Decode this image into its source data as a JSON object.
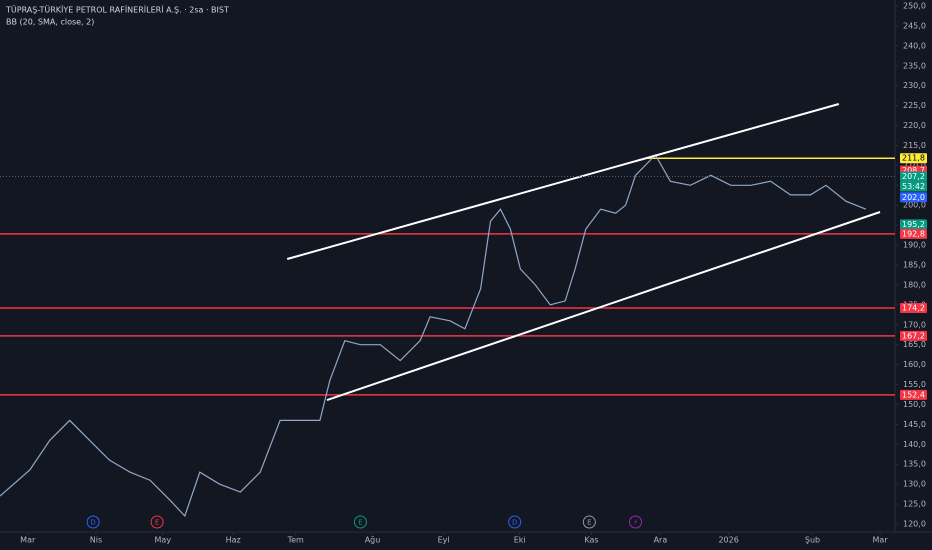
{
  "chart_data": {
    "type": "line",
    "title": "TÜPRAŞ-TÜRKİYE PETROL RAFİNERİLERİ A.Ş. · 2sa · BIST",
    "subtitle": "BB (20, SMA, close, 2)",
    "series": [
      {
        "name": "Close",
        "color": "#8fa8c8",
        "x": [
          -0.39,
          0.03,
          0.31,
          0.59,
          0.87,
          1.15,
          1.44,
          1.72,
          2.0,
          2.21,
          2.42,
          2.7,
          2.99,
          3.27,
          3.55,
          3.83,
          4.11,
          4.25,
          4.46,
          4.68,
          4.96,
          5.24,
          5.52,
          5.66,
          5.94,
          6.15,
          6.37,
          6.51,
          6.65,
          6.79,
          6.93,
          7.14,
          7.35,
          7.56,
          7.7,
          7.85,
          8.06,
          8.27,
          8.41,
          8.55,
          8.83,
          9.04,
          9.32,
          9.61,
          9.89,
          10.17,
          10.45,
          10.73,
          11.01,
          11.23,
          11.51,
          11.79
        ],
        "values": [
          127,
          133.6,
          141,
          146,
          141,
          136,
          133,
          131,
          126,
          122,
          133,
          130,
          128,
          133,
          146,
          146,
          146,
          156,
          166,
          165,
          165,
          161,
          166,
          172,
          171,
          169,
          179,
          196,
          199,
          194,
          184,
          180,
          175,
          176,
          184,
          194,
          199,
          198,
          200,
          207.5,
          212.6,
          206,
          205,
          207.5,
          205,
          205,
          206,
          202.6,
          202.6,
          205,
          201,
          199
        ]
      }
    ],
    "trend_lines": [
      {
        "x": [
          3.65,
          11.41
        ],
        "values": [
          186.5,
          225.4
        ],
        "color": "#ffffff"
      },
      {
        "x": [
          4.21,
          11.99
        ],
        "values": [
          151.1,
          198.3
        ],
        "color": "#ffffff"
      }
    ],
    "levels": [
      {
        "value": 211.8,
        "color": "#ffeb3b",
        "from": 8.69
      },
      {
        "value": 192.8,
        "color": "#f23645",
        "from": -0.39
      },
      {
        "value": 174.2,
        "color": "#f23645",
        "from": -0.39
      },
      {
        "value": 167.2,
        "color": "#f23645",
        "from": -0.39
      },
      {
        "value": 152.4,
        "color": "#f23645",
        "from": -0.39
      }
    ],
    "price_labels": [
      {
        "value": 211.8,
        "label": "211,8",
        "color": "#ffeb3b"
      },
      {
        "value": 208.7,
        "label": "208,7",
        "color": "#f23645"
      },
      {
        "value": 207.2,
        "label": "207,2",
        "color": "#089981"
      },
      {
        "label": "53:42",
        "color": "#089981"
      },
      {
        "value": 202.0,
        "label": "202,0",
        "color": "#2962ff"
      },
      {
        "value": 195.2,
        "label": "195,2",
        "color": "#089981"
      },
      {
        "value": 192.8,
        "label": "192,8",
        "color": "#f23645"
      },
      {
        "value": 174.2,
        "label": "174,2",
        "color": "#f23645"
      },
      {
        "value": 167.2,
        "label": "167,2",
        "color": "#f23645"
      },
      {
        "value": 152.4,
        "label": "152,4",
        "color": "#f23645"
      }
    ],
    "events": [
      {
        "label": "D",
        "x": 0.92,
        "color": "#2962ff"
      },
      {
        "label": "E",
        "x": 1.82,
        "color": "#f23645"
      },
      {
        "label": "E",
        "x": 4.68,
        "color": "#089981"
      },
      {
        "label": "D",
        "x": 6.85,
        "color": "#2962ff"
      },
      {
        "label": "E",
        "x": 7.9,
        "color": "#9598a1"
      },
      {
        "label": "⚡",
        "x": 8.55,
        "color": "#9c27b0"
      }
    ],
    "xlim": [
      -0.39,
      12.2
    ],
    "xticks": [
      {
        "value": 0,
        "label": "Mar"
      },
      {
        "value": 0.96,
        "label": "Nis"
      },
      {
        "value": 1.9,
        "label": "May"
      },
      {
        "value": 2.89,
        "label": "Haz"
      },
      {
        "value": 3.77,
        "label": "Tem"
      },
      {
        "value": 4.85,
        "label": "Ağu"
      },
      {
        "value": 5.85,
        "label": "Eyl"
      },
      {
        "value": 6.92,
        "label": "Eki"
      },
      {
        "value": 7.93,
        "label": "Kas"
      },
      {
        "value": 8.9,
        "label": "Ara"
      },
      {
        "value": 9.86,
        "label": "2026"
      },
      {
        "value": 11.04,
        "label": "Şub"
      },
      {
        "value": 11.99,
        "label": "Mar"
      }
    ],
    "ylim": [
      120,
      250
    ],
    "yticks": [
      {
        "value": 120,
        "label": "120,0"
      },
      {
        "value": 125,
        "label": "125,0"
      },
      {
        "value": 130,
        "label": "130,0"
      },
      {
        "value": 135,
        "label": "135,0"
      },
      {
        "value": 140,
        "label": "140,0"
      },
      {
        "value": 145,
        "label": "145,0"
      },
      {
        "value": 150,
        "label": "150,0"
      },
      {
        "value": 155,
        "label": "155,0"
      },
      {
        "value": 160,
        "label": "160,0"
      },
      {
        "value": 165,
        "label": "165,0"
      },
      {
        "value": 170,
        "label": "170,0"
      },
      {
        "value": 175,
        "label": "175,0"
      },
      {
        "value": 180,
        "label": "180,0"
      },
      {
        "value": 185,
        "label": "185,0"
      },
      {
        "value": 190,
        "label": "190,0"
      },
      {
        "value": 195,
        "label": "195,0"
      },
      {
        "value": 200,
        "label": "200,0"
      },
      {
        "value": 205,
        "label": "205,0"
      },
      {
        "value": 210,
        "label": "210,0"
      },
      {
        "value": 215,
        "label": "215,0"
      },
      {
        "value": 220,
        "label": "220,0"
      },
      {
        "value": 225,
        "label": "225,0"
      },
      {
        "value": 230,
        "label": "230,0"
      },
      {
        "value": 235,
        "label": "235,0"
      },
      {
        "value": 240,
        "label": "240,0"
      },
      {
        "value": 245,
        "label": "245,0"
      },
      {
        "value": 250,
        "label": "250,0"
      }
    ]
  }
}
